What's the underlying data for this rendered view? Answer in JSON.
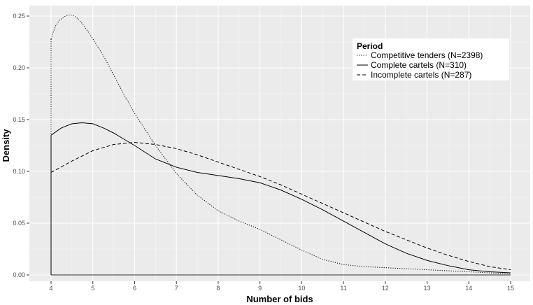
{
  "chart_data": {
    "type": "line",
    "title": "",
    "xlabel": "Number of bids",
    "ylabel": "Density",
    "xlim": [
      4,
      15
    ],
    "ylim": [
      0,
      0.25
    ],
    "x_ticks": [
      4,
      5,
      6,
      7,
      8,
      9,
      10,
      11,
      12,
      13,
      14,
      15
    ],
    "x_tick_labels": [
      "4",
      "5",
      "6",
      "7",
      "8",
      "9",
      "10",
      "11",
      "12",
      "13",
      "14",
      "15"
    ],
    "y_ticks": [
      0,
      0.05,
      0.1,
      0.15,
      0.2,
      0.25
    ],
    "y_tick_labels": [
      "0.00",
      "0.05",
      "0.10",
      "0.15",
      "0.20",
      "0.25"
    ],
    "grid": true,
    "background": "#ebebeb",
    "legend": {
      "title": "Period",
      "position": "top-right inside"
    },
    "series": [
      {
        "name": "Competitive tenders (N=2398)",
        "linestyle": "dotted",
        "color": "#000000",
        "x": [
          4,
          4.1,
          4.2,
          4.3,
          4.4,
          4.5,
          4.6,
          4.7,
          4.8,
          5,
          5.25,
          5.5,
          5.75,
          6,
          6.5,
          7,
          7.5,
          8,
          8.5,
          9,
          9.5,
          10,
          10.5,
          11,
          11.5,
          12,
          12.5,
          13,
          13.5,
          14,
          14.5,
          15
        ],
        "y": [
          0.228,
          0.24,
          0.246,
          0.249,
          0.251,
          0.251,
          0.249,
          0.245,
          0.24,
          0.228,
          0.212,
          0.193,
          0.174,
          0.156,
          0.125,
          0.098,
          0.077,
          0.062,
          0.052,
          0.044,
          0.034,
          0.024,
          0.015,
          0.01,
          0.008,
          0.007,
          0.006,
          0.005,
          0.004,
          0.003,
          0.002,
          0.001
        ]
      },
      {
        "name": "Complete cartels (N=310)",
        "linestyle": "solid",
        "color": "#000000",
        "x": [
          4,
          4.25,
          4.5,
          4.75,
          5,
          5.25,
          5.5,
          5.75,
          6,
          6.5,
          7,
          7.5,
          8,
          8.5,
          9,
          9.5,
          10,
          10.5,
          11,
          11.5,
          12,
          12.5,
          13,
          13.5,
          14,
          14.5,
          15
        ],
        "y": [
          0.135,
          0.142,
          0.146,
          0.147,
          0.146,
          0.142,
          0.137,
          0.131,
          0.125,
          0.112,
          0.104,
          0.099,
          0.096,
          0.093,
          0.089,
          0.082,
          0.073,
          0.063,
          0.052,
          0.041,
          0.03,
          0.021,
          0.014,
          0.009,
          0.005,
          0.003,
          0.002
        ]
      },
      {
        "name": "Incomplete cartels (N=287)",
        "linestyle": "dashed",
        "color": "#000000",
        "x": [
          4,
          4.5,
          5,
          5.5,
          6,
          6.5,
          7,
          7.5,
          8,
          8.5,
          9,
          9.5,
          10,
          10.5,
          11,
          11.5,
          12,
          12.5,
          13,
          13.5,
          14,
          14.5,
          15
        ],
        "y": [
          0.099,
          0.11,
          0.12,
          0.126,
          0.128,
          0.126,
          0.122,
          0.116,
          0.109,
          0.102,
          0.095,
          0.087,
          0.078,
          0.069,
          0.06,
          0.051,
          0.042,
          0.034,
          0.026,
          0.019,
          0.013,
          0.008,
          0.005
        ]
      }
    ]
  }
}
